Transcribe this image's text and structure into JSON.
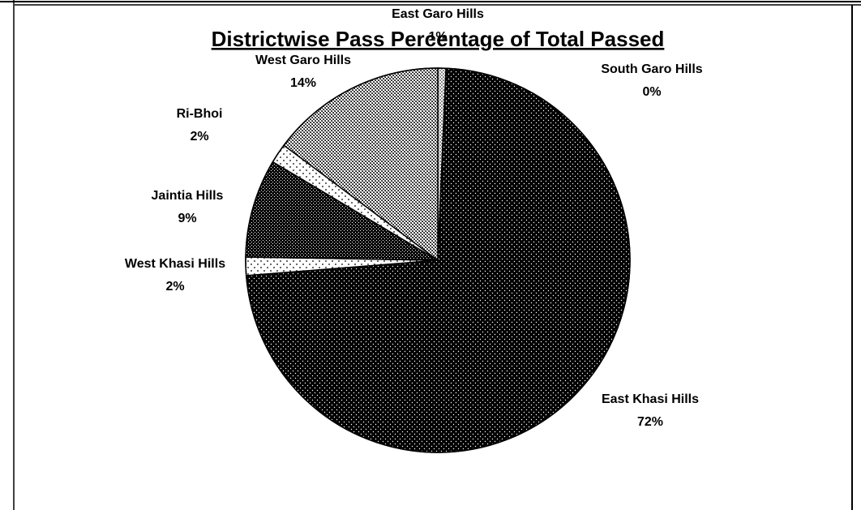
{
  "chart_data": {
    "type": "pie",
    "title": "Districtwise Pass Percentage of Total Passed",
    "categories": [
      "East Garo Hills",
      "South Garo Hills",
      "East Khasi Hills",
      "West Khasi Hills",
      "Jaintia Hills",
      "Ri-Bhoi",
      "West Garo Hills"
    ],
    "values": [
      1,
      0,
      72,
      2,
      9,
      2,
      14
    ],
    "data_labels": [
      "1%",
      "0%",
      "72%",
      "2%",
      "9%",
      "2%",
      "14%"
    ],
    "pattern_names": [
      "light-dots",
      "light-dots",
      "dark-dots",
      "sparse-dots",
      "dark-checker",
      "sparse-dots",
      "gray-checker"
    ]
  }
}
